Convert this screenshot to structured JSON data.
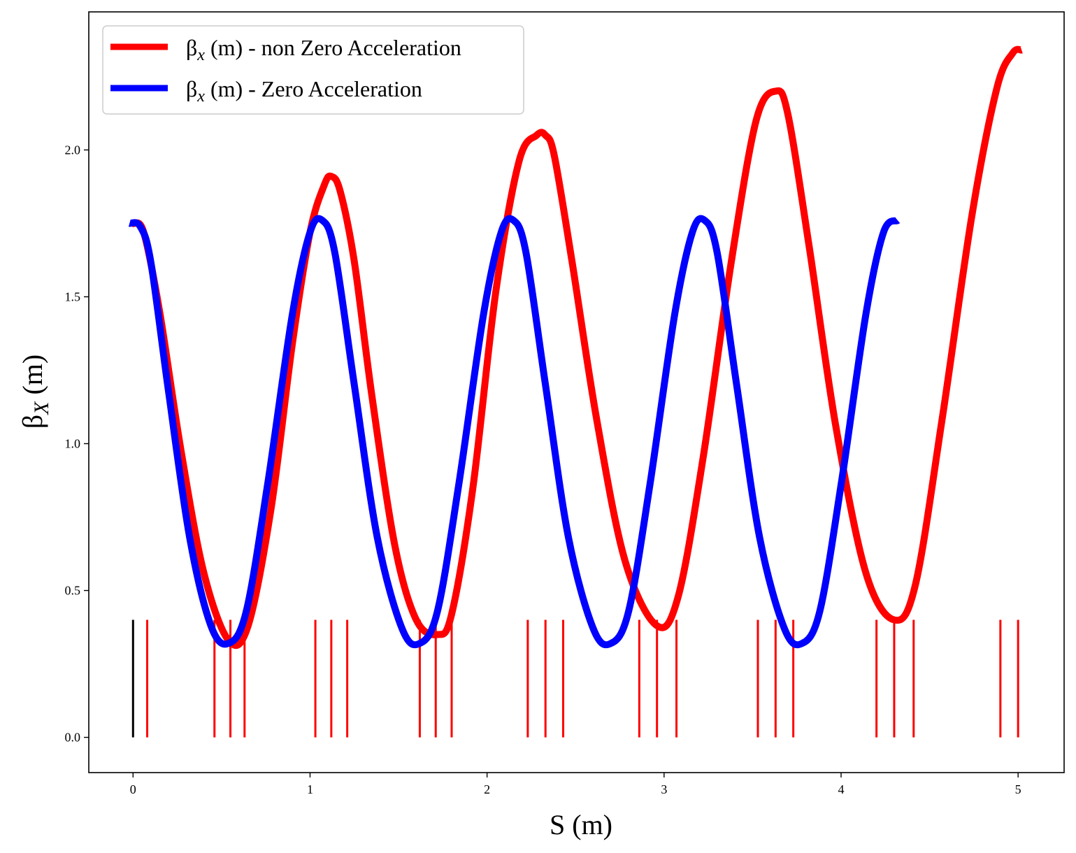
{
  "chart_data": {
    "type": "line",
    "title": "",
    "xlabel": "S (m)",
    "ylabel": {
      "main": "β",
      "sub": "X",
      "unit": " (m)"
    },
    "xlim": [
      -0.25,
      5.26
    ],
    "ylim": [
      -0.12,
      2.47
    ],
    "x_ticks": [
      0,
      1,
      2,
      3,
      4,
      5
    ],
    "x_tick_labels": [
      "0",
      "1",
      "2",
      "3",
      "4",
      "5"
    ],
    "y_ticks": [
      0.0,
      0.5,
      1.0,
      1.5,
      2.0
    ],
    "y_tick_labels": [
      "0.0",
      "0.5",
      "1.0",
      "1.5",
      "2.0"
    ],
    "grid": false,
    "legend_position": "top-left",
    "series": [
      {
        "name": "non Zero Acceleration",
        "legend_main": "β",
        "legend_sub": "x",
        "legend_rest": " (m) - non Zero Acceleration",
        "color": "#ff0000",
        "x": [
          0.0,
          0.06,
          0.15,
          0.27,
          0.4,
          0.54,
          0.65,
          0.78,
          0.9,
          1.0,
          1.08,
          1.12,
          1.17,
          1.25,
          1.35,
          1.48,
          1.6,
          1.72,
          1.8,
          1.92,
          2.05,
          2.18,
          2.28,
          2.33,
          2.38,
          2.48,
          2.62,
          2.78,
          2.96,
          3.08,
          3.22,
          3.38,
          3.52,
          3.63,
          3.7,
          3.82,
          3.97,
          4.14,
          4.3,
          4.42,
          4.57,
          4.74,
          4.88,
          4.97,
          5.02
        ],
        "y": [
          1.75,
          1.72,
          1.45,
          0.98,
          0.56,
          0.33,
          0.38,
          0.78,
          1.34,
          1.72,
          1.88,
          1.91,
          1.86,
          1.62,
          1.16,
          0.65,
          0.4,
          0.35,
          0.42,
          0.85,
          1.52,
          1.96,
          2.05,
          2.05,
          1.98,
          1.62,
          1.08,
          0.6,
          0.38,
          0.48,
          0.95,
          1.62,
          2.1,
          2.2,
          2.12,
          1.67,
          1.06,
          0.56,
          0.4,
          0.52,
          1.08,
          1.78,
          2.21,
          2.33,
          2.34
        ]
      },
      {
        "name": "Zero Acceleration",
        "legend_main": "β",
        "legend_sub": "x",
        "legend_rest": " (m) - Zero Acceleration",
        "color": "#0000ff",
        "x": [
          -0.02,
          0.04,
          0.1,
          0.2,
          0.32,
          0.44,
          0.54,
          0.64,
          0.76,
          0.9,
          1.0,
          1.07,
          1.14,
          1.25,
          1.38,
          1.52,
          1.62,
          1.72,
          1.84,
          1.98,
          2.08,
          2.15,
          2.22,
          2.33,
          2.46,
          2.6,
          2.7,
          2.8,
          2.92,
          3.06,
          3.16,
          3.23,
          3.3,
          3.41,
          3.54,
          3.68,
          3.78,
          3.88,
          4.0,
          4.14,
          4.24,
          4.32
        ],
        "y": [
          1.75,
          1.74,
          1.62,
          1.18,
          0.68,
          0.38,
          0.32,
          0.43,
          0.86,
          1.44,
          1.72,
          1.76,
          1.65,
          1.2,
          0.68,
          0.37,
          0.32,
          0.43,
          0.86,
          1.44,
          1.72,
          1.76,
          1.65,
          1.2,
          0.68,
          0.37,
          0.32,
          0.43,
          0.86,
          1.44,
          1.72,
          1.76,
          1.65,
          1.2,
          0.68,
          0.37,
          0.32,
          0.43,
          0.86,
          1.44,
          1.72,
          1.76
        ]
      }
    ],
    "element_markers": {
      "height": 0.4,
      "black_positions": [
        0.0
      ],
      "black_color": "#000000",
      "red_positions": [
        0.08,
        0.46,
        0.55,
        0.63,
        1.03,
        1.12,
        1.21,
        1.62,
        1.71,
        1.8,
        2.23,
        2.33,
        2.43,
        2.86,
        2.96,
        3.07,
        3.53,
        3.63,
        3.73,
        4.2,
        4.3,
        4.41,
        4.9,
        5.0
      ],
      "red_color": "#ff0000"
    }
  }
}
